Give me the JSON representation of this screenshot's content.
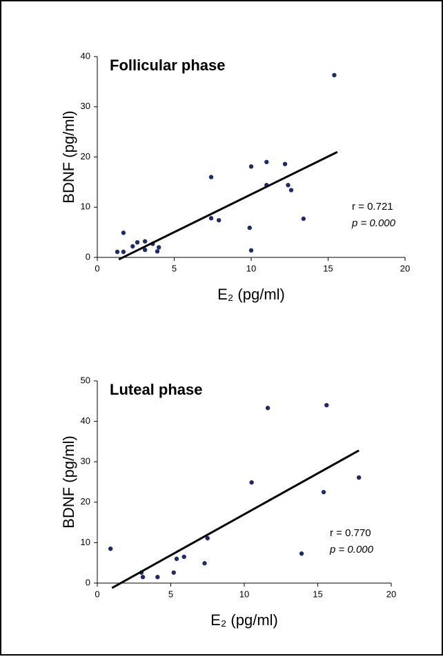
{
  "chart_data": [
    {
      "type": "scatter",
      "title": "Follicular phase",
      "x_label": "E₂ (pg/ml)",
      "y_label": "BDNF (pg/ml)",
      "color": "#1f2a6b",
      "x": [
        1.3,
        1.7,
        1.7,
        2.3,
        2.6,
        3.1,
        3.1,
        3.6,
        3.9,
        4.0,
        7.4,
        7.4,
        7.9,
        9.9,
        10.0,
        10.0,
        11.0,
        11.0,
        12.2,
        12.4,
        12.6,
        13.4,
        15.4
      ],
      "values": [
        1.1,
        1.1,
        4.9,
        2.2,
        3.0,
        3.2,
        1.5,
        2.7,
        1.2,
        2.0,
        16.0,
        7.8,
        7.4,
        5.9,
        1.4,
        18.1,
        19.0,
        14.4,
        18.6,
        14.4,
        13.4,
        7.7,
        36.3
      ],
      "trendline": {
        "x": [
          1.4,
          15.6
        ],
        "y": [
          -0.4,
          21
        ]
      },
      "xlim": [
        0,
        20
      ],
      "xticks": [
        0,
        5,
        10,
        15,
        20
      ],
      "ylim": [
        0,
        40
      ],
      "yticks": [
        0,
        10,
        20,
        30,
        40
      ],
      "annotations": [
        "r = 0.721",
        "p = 0.000"
      ]
    },
    {
      "type": "scatter",
      "title": "Luteal phase",
      "x_label": "E₂ (pg/ml)",
      "y_label": "BDNF (pg/ml)",
      "color": "#1f2a6b",
      "x": [
        0.9,
        3.0,
        3.1,
        4.1,
        5.2,
        5.4,
        5.9,
        7.3,
        7.5,
        10.5,
        11.6,
        13.9,
        15.4,
        15.6,
        17.8
      ],
      "values": [
        8.5,
        2.6,
        1.5,
        1.5,
        2.6,
        6.0,
        6.5,
        4.9,
        11.1,
        24.9,
        43.3,
        7.3,
        22.5,
        44.0,
        26.1
      ],
      "trendline": {
        "x": [
          1.0,
          17.8
        ],
        "y": [
          -1.2,
          32.8
        ]
      },
      "xlim": [
        0,
        20
      ],
      "xticks": [
        0,
        5,
        10,
        15,
        20
      ],
      "ylim": [
        0,
        50
      ],
      "yticks": [
        0,
        10,
        20,
        30,
        40,
        50
      ],
      "annotations": [
        "r = 0.770",
        "p = 0.000"
      ]
    }
  ]
}
